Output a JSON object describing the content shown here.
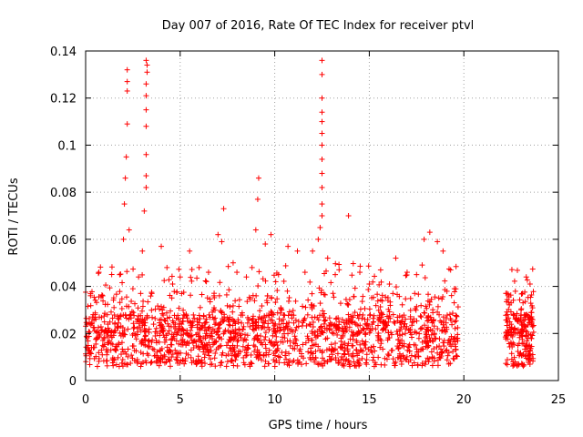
{
  "chart_data": {
    "type": "scatter",
    "title": "Day 007 of 2016, Rate Of TEC Index for receiver ptvl",
    "xlabel": "GPS time / hours",
    "ylabel": "ROTI / TECUs",
    "xlim": [
      0,
      25
    ],
    "ylim": [
      0,
      0.14
    ],
    "xticks": [
      0,
      5,
      10,
      15,
      20,
      25
    ],
    "yticks": [
      0,
      0.02,
      0.04,
      0.06,
      0.08,
      0.1,
      0.12,
      0.14
    ],
    "xtick_labels": [
      "0",
      "5",
      "10",
      "15",
      "20",
      "25"
    ],
    "ytick_labels": [
      "0",
      "0.02",
      "0.04",
      "0.06",
      "0.08",
      "0.1",
      "0.12",
      "0.14"
    ],
    "grid": true,
    "marker": "+",
    "color": "#ff0000",
    "series": [
      {
        "name": "ROTI",
        "description_of_density": "dense band 0.005-0.03 TECU from 0 to 19.7 h and 22.2 to 23.7 h; data gap 19.7-22.2 h",
        "points": [
          [
            0.2,
            0.012
          ],
          [
            0.5,
            0.028
          ],
          [
            0.7,
            0.046
          ],
          [
            0.9,
            0.036
          ],
          [
            1.2,
            0.021
          ],
          [
            1.5,
            0.031
          ],
          [
            1.8,
            0.045
          ],
          [
            2.0,
            0.06
          ],
          [
            2.05,
            0.075
          ],
          [
            2.1,
            0.086
          ],
          [
            2.15,
            0.095
          ],
          [
            2.2,
            0.109
          ],
          [
            2.2,
            0.123
          ],
          [
            2.2,
            0.127
          ],
          [
            2.2,
            0.132
          ],
          [
            2.3,
            0.064
          ],
          [
            2.5,
            0.039
          ],
          [
            2.8,
            0.044
          ],
          [
            3.0,
            0.055
          ],
          [
            3.1,
            0.072
          ],
          [
            3.2,
            0.082
          ],
          [
            3.2,
            0.087
          ],
          [
            3.2,
            0.096
          ],
          [
            3.2,
            0.108
          ],
          [
            3.2,
            0.115
          ],
          [
            3.2,
            0.121
          ],
          [
            3.2,
            0.126
          ],
          [
            3.25,
            0.131
          ],
          [
            3.25,
            0.134
          ],
          [
            3.2,
            0.136
          ],
          [
            3.5,
            0.037
          ],
          [
            4.0,
            0.057
          ],
          [
            4.3,
            0.048
          ],
          [
            4.6,
            0.041
          ],
          [
            5.0,
            0.044
          ],
          [
            5.5,
            0.055
          ],
          [
            6.0,
            0.048
          ],
          [
            6.5,
            0.046
          ],
          [
            7.0,
            0.062
          ],
          [
            7.2,
            0.059
          ],
          [
            7.3,
            0.073
          ],
          [
            7.8,
            0.05
          ],
          [
            8.0,
            0.046
          ],
          [
            8.5,
            0.044
          ],
          [
            8.8,
            0.048
          ],
          [
            9.0,
            0.064
          ],
          [
            9.1,
            0.077
          ],
          [
            9.15,
            0.086
          ],
          [
            9.5,
            0.058
          ],
          [
            9.8,
            0.062
          ],
          [
            10.2,
            0.045
          ],
          [
            10.7,
            0.057
          ],
          [
            11.2,
            0.055
          ],
          [
            11.6,
            0.046
          ],
          [
            12.0,
            0.055
          ],
          [
            12.3,
            0.06
          ],
          [
            12.4,
            0.065
          ],
          [
            12.5,
            0.07
          ],
          [
            12.5,
            0.075
          ],
          [
            12.5,
            0.082
          ],
          [
            12.5,
            0.088
          ],
          [
            12.5,
            0.094
          ],
          [
            12.5,
            0.1
          ],
          [
            12.5,
            0.105
          ],
          [
            12.5,
            0.11
          ],
          [
            12.5,
            0.114
          ],
          [
            12.5,
            0.12
          ],
          [
            12.5,
            0.13
          ],
          [
            12.5,
            0.136
          ],
          [
            12.8,
            0.052
          ],
          [
            13.2,
            0.045
          ],
          [
            13.9,
            0.07
          ],
          [
            14.5,
            0.046
          ],
          [
            15.0,
            0.041
          ],
          [
            15.6,
            0.047
          ],
          [
            16.4,
            0.052
          ],
          [
            17.0,
            0.046
          ],
          [
            17.5,
            0.045
          ],
          [
            17.9,
            0.06
          ],
          [
            18.2,
            0.063
          ],
          [
            18.6,
            0.059
          ],
          [
            18.9,
            0.055
          ],
          [
            19.3,
            0.047
          ],
          [
            19.5,
            0.039
          ],
          [
            22.3,
            0.028
          ],
          [
            22.5,
            0.033
          ],
          [
            23.1,
            0.037
          ],
          [
            23.3,
            0.044
          ],
          [
            23.5,
            0.041
          ]
        ]
      }
    ]
  }
}
